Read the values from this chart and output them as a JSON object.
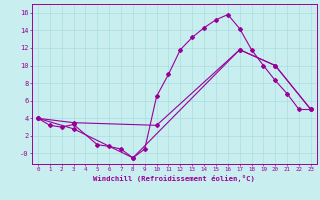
{
  "title": "",
  "xlabel": "Windchill (Refroidissement éolien,°C)",
  "ylabel": "",
  "bg_color": "#c8eef0",
  "line_color": "#990099",
  "grid_color": "#aadddd",
  "xlim": [
    -0.5,
    23.5
  ],
  "ylim": [
    -1.2,
    17
  ],
  "xticks": [
    0,
    1,
    2,
    3,
    4,
    5,
    6,
    7,
    8,
    9,
    10,
    11,
    12,
    13,
    14,
    15,
    16,
    17,
    18,
    19,
    20,
    21,
    22,
    23
  ],
  "yticks": [
    0,
    2,
    4,
    6,
    8,
    10,
    12,
    14,
    16
  ],
  "ytick_labels": [
    "-0",
    "2",
    "4",
    "6",
    "8",
    "10",
    "12",
    "14",
    "16"
  ],
  "line1_x": [
    0,
    1,
    2,
    3,
    5,
    6,
    7,
    8,
    9,
    10,
    11,
    12,
    13,
    14,
    15,
    16,
    17,
    18,
    19,
    20,
    21,
    22,
    23
  ],
  "line1_y": [
    4.0,
    3.2,
    3.0,
    3.3,
    1.0,
    0.8,
    0.5,
    -0.5,
    0.5,
    6.5,
    9.0,
    11.8,
    13.2,
    14.3,
    15.2,
    15.8,
    14.2,
    11.8,
    10.0,
    8.3,
    6.8,
    5.0,
    5.0
  ],
  "line2_x": [
    0,
    3,
    10,
    17,
    20,
    23
  ],
  "line2_y": [
    4.0,
    3.5,
    3.2,
    11.8,
    10.0,
    5.0
  ],
  "line3_x": [
    0,
    3,
    8,
    17,
    20,
    23
  ],
  "line3_y": [
    4.0,
    2.8,
    -0.5,
    11.8,
    10.0,
    5.0
  ]
}
